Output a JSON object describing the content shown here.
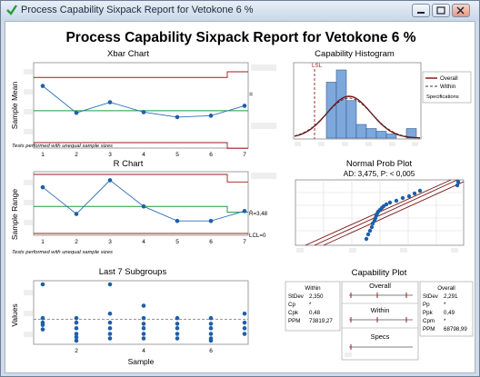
{
  "window": {
    "title": "Process Capability Sixpack Report for Vetokone 6 %"
  },
  "report": {
    "title": "Process Capability Sixpack Report for Vetokone 6 %"
  },
  "xbar": {
    "title": "Xbar Chart",
    "ylabel": "Sample Mean",
    "center_label": "=",
    "note": "Tests performed with unequal sample sizes",
    "x_ticks": [
      "1",
      "2",
      "3",
      "4",
      "5",
      "6",
      "7"
    ]
  },
  "rchart": {
    "title": "R Chart",
    "ylabel": "Sample Range",
    "rbar_label": "R̄=3,48",
    "lcl_label": "LCL=0",
    "note": "Tests performed with unequal sample sizes",
    "x_ticks": [
      "1",
      "2",
      "3",
      "4",
      "5",
      "6",
      "7"
    ]
  },
  "last7": {
    "title": "Last 7 Subgroups",
    "ylabel": "Values",
    "xlabel": "Sample",
    "x_ticks": [
      "2",
      "4",
      "6"
    ]
  },
  "histogram": {
    "title": "Capability Histogram",
    "lsl_label": "LSL",
    "legend": {
      "overall": "Overall",
      "within": "Within",
      "specs": "Specifications"
    }
  },
  "probplot": {
    "title": "Normal Prob Plot",
    "subtitle": "AD: 3,475, P: < 0,005"
  },
  "capplot": {
    "title": "Capability Plot",
    "within_box": {
      "heading": "Within",
      "rows": [
        {
          "k": "StDev",
          "v": "2,350"
        },
        {
          "k": "Cp",
          "v": "*"
        },
        {
          "k": "Cpk",
          "v": "0,48"
        },
        {
          "k": "PPM",
          "v": "73819,27"
        }
      ]
    },
    "overall_box": {
      "heading": "Overall",
      "rows": [
        {
          "k": "StDev",
          "v": "2,291"
        },
        {
          "k": "Pp",
          "v": "*"
        },
        {
          "k": "Ppk",
          "v": "0,49"
        },
        {
          "k": "Cpm",
          "v": "*"
        },
        {
          "k": "PPM",
          "v": "68798,99"
        }
      ]
    },
    "bars": [
      {
        "label": "Overall"
      },
      {
        "label": "Within"
      },
      {
        "label": "Specs"
      }
    ]
  },
  "colors": {
    "line": "#2e6fb7",
    "center": "#1f9a3a",
    "limit": "#9b1c1c",
    "bar": "#7ea7dc"
  },
  "chart_data": [
    {
      "type": "line",
      "title": "Xbar Chart",
      "ylabel": "Sample Mean",
      "x": [
        1,
        2,
        3,
        4,
        5,
        6,
        7
      ],
      "values": [
        0.8,
        0.42,
        0.57,
        0.43,
        0.36,
        0.38,
        0.52
      ],
      "center": 0.45,
      "ucl": [
        0.92,
        0.92,
        0.92,
        0.92,
        0.92,
        0.92,
        1.0
      ],
      "lcl": [
        0.0,
        0.0,
        0.0,
        0.0,
        0.0,
        0.0,
        -0.08
      ]
    },
    {
      "type": "line",
      "title": "R Chart",
      "ylabel": "Sample Range",
      "x": [
        1,
        2,
        3,
        4,
        5,
        6,
        7
      ],
      "values": [
        0.78,
        0.32,
        0.9,
        0.45,
        0.2,
        0.2,
        0.37
      ],
      "center": 0.45,
      "center_last": 0.35,
      "ucl": [
        1.0,
        1.0,
        1.0,
        1.0,
        1.0,
        1.0,
        0.87
      ],
      "lcl": 0
    },
    {
      "type": "scatter",
      "title": "Last 7 Subgroups",
      "ylabel": "Values",
      "xlabel": "Sample",
      "groups": [
        {
          "x": 1,
          "values": [
            1.0,
            0.4,
            0.32,
            0.28,
            0.2
          ]
        },
        {
          "x": 2,
          "values": [
            0.4,
            0.32,
            0.22,
            0.12,
            0.06,
            0.0
          ]
        },
        {
          "x": 3,
          "values": [
            1.0,
            0.48,
            0.32,
            0.22,
            0.12,
            0.04
          ]
        },
        {
          "x": 4,
          "values": [
            0.62,
            0.4,
            0.3,
            0.22,
            0.12,
            0.04
          ]
        },
        {
          "x": 5,
          "values": [
            0.4,
            0.3,
            0.22,
            0.12,
            0.04
          ]
        },
        {
          "x": 6,
          "values": [
            0.4,
            0.3,
            0.22,
            0.12,
            0.04,
            0.0
          ]
        },
        {
          "x": 7,
          "values": [
            0.48,
            0.32,
            0.22,
            0.12
          ]
        }
      ],
      "center": 0.38
    },
    {
      "type": "bar",
      "title": "Capability Histogram",
      "bins": 12,
      "values": [
        0,
        0,
        0,
        0.82,
        1.0,
        0.55,
        0.2,
        0.14,
        0.1,
        0.06,
        0,
        0.14
      ]
    },
    {
      "type": "scatter",
      "title": "Normal Prob Plot",
      "subtitle": "AD: 3,475, P: < 0,005"
    }
  ]
}
